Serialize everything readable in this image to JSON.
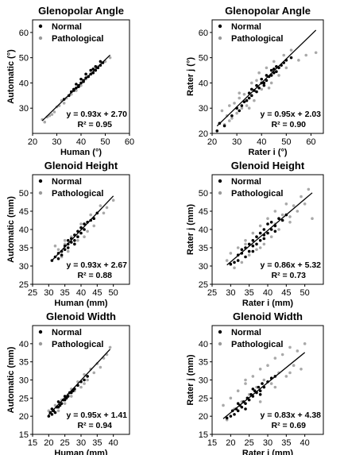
{
  "chart_data": [
    {
      "type": "scatter",
      "title": "Glenopolar Angle",
      "xlabel": "Human (°)",
      "ylabel": "Automatic (°)",
      "xlim": [
        20,
        60
      ],
      "ylim": [
        20,
        65
      ],
      "xticks": [
        20,
        30,
        40,
        50,
        60
      ],
      "yticks": [
        30,
        40,
        50,
        60
      ],
      "legend": [
        "Normal",
        "Pathological"
      ],
      "legend_position": "top-left",
      "regression": {
        "slope": 0.93,
        "intercept": 2.7
      },
      "equation": "y = 0.93x + 2.70",
      "r2": "R² = 0.95",
      "series": [
        {
          "name": "Normal",
          "color": "#000000",
          "x": [
            33,
            35,
            36,
            37,
            38,
            38,
            39,
            40,
            40,
            41,
            42,
            42,
            43,
            44,
            44,
            45,
            45,
            46,
            46,
            47,
            48,
            48,
            49,
            37,
            39,
            41,
            43
          ],
          "y": [
            33.5,
            35,
            36.5,
            37,
            38,
            39.5,
            39,
            40,
            41.5,
            41,
            42,
            43.5,
            42.5,
            43.5,
            45,
            44,
            45.5,
            45,
            46.5,
            46,
            47,
            48.5,
            48,
            37.5,
            38.5,
            40.5,
            42.5
          ]
        },
        {
          "name": "Pathological",
          "color": "#9a9a9a",
          "x": [
            24,
            25,
            26,
            27,
            28,
            29,
            30,
            31,
            32,
            33,
            34,
            36,
            38,
            40,
            42,
            45,
            47,
            50,
            52
          ],
          "y": [
            25.5,
            24.5,
            26.5,
            27,
            27.5,
            28.5,
            30.5,
            31,
            33,
            32,
            34,
            35.5,
            37,
            39,
            41.5,
            44,
            46.5,
            48.5,
            50
          ]
        }
      ]
    },
    {
      "type": "scatter",
      "title": "Glenopolar Angle",
      "xlabel": "Rater i (°)",
      "ylabel": "Rater j (°)",
      "xlim": [
        20,
        65
      ],
      "ylim": [
        20,
        65
      ],
      "xticks": [
        20,
        30,
        40,
        50,
        60
      ],
      "yticks": [
        20,
        30,
        40,
        50,
        60
      ],
      "legend": [
        "Normal",
        "Pathological"
      ],
      "legend_position": "top-left",
      "regression": {
        "slope": 0.95,
        "intercept": 2.03
      },
      "equation": "y = 0.95x + 2.03",
      "r2": "R² = 0.90",
      "series": [
        {
          "name": "Normal",
          "color": "#000000",
          "x": [
            22,
            23,
            25,
            28,
            30,
            31,
            32,
            33,
            34,
            35,
            35,
            36,
            37,
            38,
            38,
            39,
            40,
            40,
            41,
            42,
            42,
            43,
            44,
            44,
            45,
            46,
            46,
            47,
            48,
            49,
            50,
            52,
            36,
            41,
            45
          ],
          "y": [
            21,
            24,
            23,
            27,
            30,
            29,
            31,
            32.5,
            33,
            34,
            36,
            35,
            37,
            36.5,
            39,
            38,
            40,
            41.5,
            40,
            41,
            43,
            42.5,
            43,
            45,
            44,
            44.5,
            46.5,
            46,
            47,
            48,
            49,
            50,
            37.5,
            39,
            45.5
          ]
        },
        {
          "name": "Pathological",
          "color": "#9a9a9a",
          "x": [
            24,
            25,
            26,
            27,
            28,
            29,
            30,
            31,
            32,
            33,
            34,
            36,
            37,
            38,
            40,
            42,
            44,
            45,
            47,
            49,
            50,
            52,
            55,
            58,
            62,
            27,
            31,
            35,
            39,
            43
          ],
          "y": [
            29,
            23.5,
            27,
            31,
            26,
            32,
            28,
            34,
            30,
            35.5,
            31,
            40,
            33,
            41,
            37.5,
            46,
            40,
            48.5,
            43,
            51,
            46,
            53,
            49,
            51,
            52,
            25,
            36,
            30,
            44,
            38
          ]
        }
      ]
    },
    {
      "type": "scatter",
      "title": "Glenoid Height",
      "xlabel": "Human (mm)",
      "ylabel": "Automatic (mm)",
      "xlim": [
        25,
        55
      ],
      "ylim": [
        25,
        55
      ],
      "xticks": [
        25,
        30,
        35,
        40,
        45,
        50
      ],
      "yticks": [
        25,
        30,
        35,
        40,
        45,
        50
      ],
      "legend": [
        "Normal",
        "Pathological"
      ],
      "legend_position": "top-left",
      "regression": {
        "slope": 0.93,
        "intercept": 2.67
      },
      "equation": "y = 0.93x + 2.67",
      "r2": "R² = 0.88",
      "series": [
        {
          "name": "Normal",
          "color": "#000000",
          "x": [
            31,
            32,
            33,
            33,
            34,
            34,
            35,
            35,
            36,
            36,
            37,
            37,
            38,
            38,
            39,
            39,
            40,
            40,
            41,
            41,
            42,
            43,
            44,
            45,
            36,
            38
          ],
          "y": [
            31.5,
            32.5,
            32,
            33.5,
            34,
            33,
            34.5,
            35.5,
            36,
            35,
            36.5,
            37.5,
            37,
            38.5,
            38,
            39.5,
            39,
            40.5,
            40,
            41.5,
            42,
            42.5,
            43,
            44.5,
            37,
            36
          ]
        },
        {
          "name": "Pathological",
          "color": "#9a9a9a",
          "x": [
            32,
            33,
            34,
            35,
            36,
            37,
            38,
            39,
            40,
            42,
            43,
            44,
            46,
            47,
            48,
            50,
            35,
            41
          ],
          "y": [
            35.5,
            34.5,
            32.5,
            36,
            34,
            38,
            36,
            37,
            41.5,
            39.5,
            44,
            41,
            46.5,
            44.5,
            46,
            48,
            37,
            38
          ]
        }
      ]
    },
    {
      "type": "scatter",
      "title": "Glenoid Height",
      "xlabel": "Rater i (mm)",
      "ylabel": "Rater j (mm)",
      "xlim": [
        25,
        55
      ],
      "ylim": [
        25,
        55
      ],
      "xticks": [
        25,
        30,
        35,
        40,
        45,
        50
      ],
      "yticks": [
        25,
        30,
        35,
        40,
        45,
        50
      ],
      "legend": [
        "Normal",
        "Pathological"
      ],
      "legend_position": "top-left",
      "regression": {
        "slope": 0.86,
        "intercept": 5.32
      },
      "equation": "y = 0.86x + 5.32",
      "r2": "R² = 0.73",
      "series": [
        {
          "name": "Normal",
          "color": "#000000",
          "x": [
            30,
            31,
            32,
            32,
            33,
            34,
            34,
            35,
            35,
            36,
            36,
            37,
            37,
            38,
            38,
            39,
            39,
            40,
            40,
            41,
            41,
            42,
            43,
            44,
            45,
            33,
            36,
            39,
            42
          ],
          "y": [
            30.5,
            31,
            33,
            31.5,
            33.5,
            32.5,
            35,
            34,
            36,
            35.5,
            37,
            36,
            38,
            37,
            39,
            38.5,
            40,
            39,
            41.5,
            40,
            42,
            41,
            43,
            42.5,
            44,
            34.5,
            34,
            37.5,
            39.5
          ]
        },
        {
          "name": "Pathological",
          "color": "#9a9a9a",
          "x": [
            29,
            30,
            31,
            32,
            33,
            34,
            35,
            36,
            37,
            38,
            39,
            40,
            41,
            42,
            43,
            44,
            45,
            46,
            47,
            48,
            49,
            50,
            51,
            52,
            34,
            38,
            42,
            46
          ],
          "y": [
            31.5,
            33.5,
            29.5,
            35,
            31,
            37,
            33,
            39,
            34.5,
            41,
            36,
            43,
            38,
            45,
            40,
            44,
            47,
            42,
            46.5,
            45,
            49,
            47,
            51,
            43,
            36,
            35,
            41.5,
            43.5
          ]
        }
      ]
    },
    {
      "type": "scatter",
      "title": "Glenoid Width",
      "xlabel": "Human (mm)",
      "ylabel": "Automatic (mm)",
      "xlim": [
        15,
        45
      ],
      "ylim": [
        15,
        45
      ],
      "xticks": [
        15,
        20,
        25,
        30,
        35,
        40
      ],
      "yticks": [
        15,
        20,
        25,
        30,
        35,
        40
      ],
      "legend": [
        "Normal",
        "Pathological"
      ],
      "legend_position": "top-left",
      "regression": {
        "slope": 0.95,
        "intercept": 1.41
      },
      "equation": "y = 0.95x + 1.41",
      "r2": "R² = 0.94",
      "series": [
        {
          "name": "Normal",
          "color": "#000000",
          "x": [
            20,
            20.5,
            21,
            21.5,
            22,
            22.5,
            23,
            23.5,
            24,
            24.5,
            25,
            25.5,
            26,
            26.5,
            27,
            27.5,
            28,
            29,
            30,
            31,
            32,
            21,
            23,
            25
          ],
          "y": [
            20,
            21,
            20.5,
            21.5,
            21,
            22.5,
            22.5,
            23,
            23.5,
            24.5,
            24.5,
            25,
            25.5,
            26.5,
            26.5,
            27,
            27.5,
            28.5,
            29.5,
            30,
            31,
            22,
            24,
            25.5
          ]
        },
        {
          "name": "Pathological",
          "color": "#9a9a9a",
          "x": [
            20,
            21,
            22,
            23,
            24,
            25,
            26,
            27,
            28,
            29,
            30,
            31,
            32,
            33,
            34,
            35,
            36,
            37,
            38,
            39,
            27,
            31
          ],
          "y": [
            21.5,
            22,
            23,
            21.5,
            24.5,
            23.5,
            26,
            27.5,
            27,
            29.5,
            28,
            31.5,
            30,
            33,
            32,
            34.5,
            33.5,
            36,
            37,
            39,
            25.5,
            29
          ]
        }
      ]
    },
    {
      "type": "scatter",
      "title": "Glenoid Width",
      "xlabel": "Rater i (mm)",
      "ylabel": "Rater j (mm)",
      "xlim": [
        15,
        45
      ],
      "ylim": [
        15,
        45
      ],
      "xticks": [
        15,
        20,
        25,
        30,
        35,
        40
      ],
      "yticks": [
        15,
        20,
        25,
        30,
        35,
        40
      ],
      "legend": [
        "Normal",
        "Pathological"
      ],
      "legend_position": "top-left",
      "regression": {
        "slope": 0.83,
        "intercept": 4.38
      },
      "equation": "y = 0.83x + 4.38",
      "r2": "R² = 0.69",
      "series": [
        {
          "name": "Normal",
          "color": "#000000",
          "x": [
            19,
            20,
            20.5,
            21,
            21.5,
            22,
            22.5,
            23,
            23.5,
            24,
            24.5,
            25,
            25.5,
            26,
            26.5,
            27,
            27.5,
            28,
            28.5,
            29,
            30,
            31,
            32,
            22,
            24,
            26,
            28
          ],
          "y": [
            19.5,
            20,
            21.5,
            20.5,
            22,
            21.5,
            23,
            22.5,
            24,
            23.5,
            25,
            24.5,
            26,
            25.5,
            27,
            26.5,
            28,
            27,
            29,
            28,
            29.5,
            30.5,
            31,
            23.5,
            22,
            27.5,
            26
          ]
        },
        {
          "name": "Pathological",
          "color": "#9a9a9a",
          "x": [
            18,
            19,
            20,
            21,
            22,
            23,
            24,
            25,
            26,
            27,
            28,
            29,
            30,
            31,
            32,
            33,
            34,
            35,
            36,
            37,
            38,
            39,
            40,
            24,
            28,
            32,
            36
          ],
          "y": [
            23,
            19,
            25,
            22,
            27,
            24,
            29,
            26,
            31,
            28,
            33,
            30,
            34,
            29,
            36,
            32,
            37,
            31,
            39,
            34,
            38,
            33,
            40,
            30,
            24,
            28,
            32
          ]
        }
      ]
    }
  ]
}
